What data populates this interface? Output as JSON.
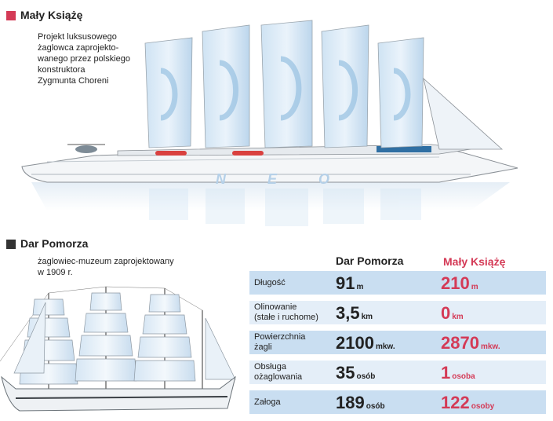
{
  "maly": {
    "title": "Mały Książę",
    "desc_lines": [
      "Projekt luksusowego",
      "żaglowca zaprojekto-",
      "wanego przez polskiego",
      "konstruktora",
      "Zygmunta Choreni"
    ],
    "hull_text": "N E O",
    "color": "#d43a56"
  },
  "dar": {
    "title": "Dar Pomorza",
    "desc_lines": [
      "żaglowiec-muzeum zaprojektowany",
      "w 1909 r."
    ],
    "color": "#333333"
  },
  "table": {
    "col_dar": "Dar Pomorza",
    "col_maly": "Mały Książę",
    "rows": [
      {
        "label": [
          "Długość"
        ],
        "dar_num": "91",
        "dar_unit": "m",
        "maly_num": "210",
        "maly_unit": "m"
      },
      {
        "label": [
          "Olinowanie",
          "(stałe i ruchome)"
        ],
        "dar_num": "3,5",
        "dar_unit": "km",
        "maly_num": "0",
        "maly_unit": "km"
      },
      {
        "label": [
          "Powierzchnia",
          "żagli"
        ],
        "dar_num": "2100",
        "dar_unit": "mkw.",
        "maly_num": "2870",
        "maly_unit": "mkw."
      },
      {
        "label": [
          "Obsługa",
          "ożaglowania"
        ],
        "dar_num": "35",
        "dar_unit": "osób",
        "maly_num": "1",
        "maly_unit": "osoba"
      },
      {
        "label": [
          "Załoga"
        ],
        "dar_num": "189",
        "dar_unit": "osób",
        "maly_num": "122",
        "maly_unit": "osoby"
      }
    ]
  }
}
